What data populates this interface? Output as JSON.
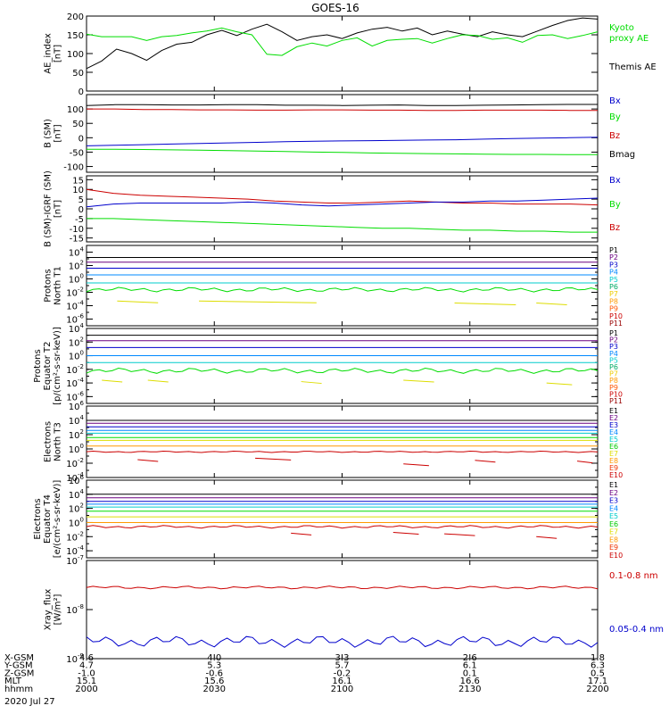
{
  "title": "GOES-16",
  "date": "2020 Jul 27",
  "chart_data": [
    {
      "type": "line",
      "ylabel": [
        "AE_index",
        "[nT]"
      ],
      "ylim": [
        0,
        200
      ],
      "yticks": [
        "0",
        "50",
        "100",
        "150",
        "200"
      ],
      "legend": [
        {
          "text": "Kyoto",
          "color": "#00dd00"
        },
        {
          "text": "proxy AE",
          "color": "#00dd00"
        },
        {
          "text": "Themis AE",
          "color": "#000000"
        }
      ],
      "series": [
        {
          "name": "Themis AE",
          "color": "#000000",
          "values": [
            60,
            80,
            112,
            100,
            82,
            108,
            125,
            130,
            150,
            162,
            148,
            165,
            178,
            158,
            135,
            145,
            150,
            140,
            155,
            165,
            170,
            160,
            168,
            150,
            160,
            152,
            145,
            158,
            150,
            145,
            160,
            175,
            188,
            195,
            192
          ]
        },
        {
          "name": "Kyoto proxy AE",
          "color": "#00dd00",
          "values": [
            152,
            145,
            145,
            145,
            135,
            145,
            148,
            155,
            160,
            168,
            158,
            150,
            98,
            95,
            118,
            128,
            120,
            135,
            142,
            120,
            135,
            138,
            140,
            128,
            140,
            150,
            148,
            138,
            142,
            130,
            148,
            150,
            140,
            148,
            158
          ]
        }
      ]
    },
    {
      "type": "line",
      "ylabel": [
        "B (SM)",
        "[nT]"
      ],
      "ylim": [
        -120,
        150
      ],
      "yticks": [
        "-100",
        "-50",
        "0",
        "50",
        "100"
      ],
      "legend": [
        {
          "text": "Bx",
          "color": "#0000cc"
        },
        {
          "text": "By",
          "color": "#00dd00"
        },
        {
          "text": "Bz",
          "color": "#cc0000"
        },
        {
          "text": "Bmag",
          "color": "#000000"
        }
      ],
      "series": [
        {
          "name": "Bmag",
          "color": "#000000",
          "values": [
            112,
            115,
            115,
            114,
            114,
            115,
            115,
            113,
            113,
            112,
            113,
            114,
            112,
            112,
            113,
            114,
            115,
            116,
            116
          ]
        },
        {
          "name": "Bz",
          "color": "#cc0000",
          "values": [
            100,
            100,
            98,
            98,
            97,
            97,
            96,
            96,
            97,
            97,
            96,
            96,
            95,
            95,
            96,
            96,
            96,
            95,
            95
          ]
        },
        {
          "name": "Bx",
          "color": "#0000cc",
          "values": [
            -28,
            -26,
            -24,
            -22,
            -20,
            -18,
            -16,
            -14,
            -12,
            -11,
            -10,
            -9,
            -8,
            -7,
            -5,
            -3,
            -1,
            0,
            2
          ]
        },
        {
          "name": "By",
          "color": "#00dd00",
          "values": [
            -40,
            -40,
            -41,
            -42,
            -43,
            -45,
            -46,
            -48,
            -50,
            -51,
            -53,
            -54,
            -55,
            -56,
            -57,
            -58,
            -58,
            -59,
            -59
          ]
        }
      ]
    },
    {
      "type": "line",
      "ylabel": [
        "B (SM)-IGRF (SM)",
        "[nT]"
      ],
      "ylim": [
        -17,
        17
      ],
      "yticks": [
        "-15",
        "-10",
        "-5",
        "0",
        "5",
        "10",
        "15"
      ],
      "legend": [
        {
          "text": "Bx",
          "color": "#0000cc"
        },
        {
          "text": "By",
          "color": "#00dd00"
        },
        {
          "text": "Bz",
          "color": "#cc0000"
        }
      ],
      "series": [
        {
          "name": "Bz",
          "color": "#cc0000",
          "values": [
            10,
            8,
            7,
            6.5,
            6,
            5.5,
            5,
            4,
            3.5,
            3,
            3,
            3.5,
            4,
            3.5,
            3,
            3,
            2.5,
            2.5,
            2.5,
            2
          ]
        },
        {
          "name": "Bx",
          "color": "#0000cc",
          "values": [
            1,
            2.5,
            3,
            3,
            3,
            3,
            3.5,
            3,
            2,
            1.5,
            2,
            2.5,
            3,
            3.5,
            3.5,
            4,
            4,
            4.5,
            5,
            5.5
          ]
        },
        {
          "name": "By",
          "color": "#00dd00",
          "values": [
            -5,
            -5,
            -5.5,
            -6,
            -6.5,
            -7,
            -7.5,
            -8,
            -8.5,
            -9,
            -9.5,
            -10,
            -10,
            -10.5,
            -11,
            -11,
            -11.5,
            -11.5,
            -12,
            -12
          ]
        }
      ]
    },
    {
      "type": "line",
      "log": true,
      "ylabel": [
        "Protons",
        "North T1"
      ],
      "ylim_exp": [
        -7,
        5
      ],
      "ytick_exps": [
        -6,
        -4,
        -2,
        0,
        2,
        4
      ],
      "legend": [
        {
          "text": "P1",
          "color": "#000000"
        },
        {
          "text": "P2",
          "color": "#6a0080"
        },
        {
          "text": "P3",
          "color": "#0000cc"
        },
        {
          "text": "P4",
          "color": "#0088ff"
        },
        {
          "text": "P5",
          "color": "#00cccc"
        },
        {
          "text": "P6",
          "color": "#00aa66"
        },
        {
          "text": "P7",
          "color": "#eecc00"
        },
        {
          "text": "P8",
          "color": "#ff9900"
        },
        {
          "text": "P9",
          "color": "#ff5500"
        },
        {
          "text": "P10",
          "color": "#cc0000"
        },
        {
          "text": "P11",
          "color": "#990000"
        }
      ],
      "series": [
        {
          "name": "P1",
          "color": "#000000",
          "level": 3.2
        },
        {
          "name": "P2",
          "color": "#6a0080",
          "level": 2.5
        },
        {
          "name": "P3",
          "color": "#0000cc",
          "level": 1.6
        },
        {
          "name": "P4",
          "color": "#0088ff",
          "level": 0.6
        },
        {
          "name": "P5",
          "color": "#00cccc",
          "level": -0.6
        },
        {
          "name": "P6",
          "color": "#00dd00",
          "level": -1.6,
          "wiggle": 0.35
        },
        {
          "name": "P7",
          "color": "#dddd00",
          "segments": [
            [
              0.06,
              0.14,
              -3.3
            ],
            [
              0.22,
              0.45,
              -3.3
            ],
            [
              0.72,
              0.84,
              -3.6
            ],
            [
              0.88,
              0.94,
              -3.6
            ]
          ]
        }
      ]
    },
    {
      "type": "line",
      "log": true,
      "ylabel": [
        "Protons",
        "Equator T2",
        "[p/(cm²-s-sr-keV)]"
      ],
      "ylim_exp": [
        -7,
        4
      ],
      "ytick_exps": [
        -6,
        -4,
        -2,
        0,
        2,
        4
      ],
      "legend": [
        {
          "text": "P1",
          "color": "#000000"
        },
        {
          "text": "P2",
          "color": "#6a0080"
        },
        {
          "text": "P3",
          "color": "#0000cc"
        },
        {
          "text": "P4",
          "color": "#0088ff"
        },
        {
          "text": "P5",
          "color": "#00cccc"
        },
        {
          "text": "P6",
          "color": "#00aa66"
        },
        {
          "text": "P7",
          "color": "#eecc00"
        },
        {
          "text": "P8",
          "color": "#ff9900"
        },
        {
          "text": "P9",
          "color": "#ff5500"
        },
        {
          "text": "P10",
          "color": "#cc0000"
        },
        {
          "text": "P11",
          "color": "#990000"
        }
      ],
      "series": [
        {
          "name": "P1",
          "color": "#000000",
          "level": 3.0
        },
        {
          "name": "P2",
          "color": "#6a0080",
          "level": 2.2
        },
        {
          "name": "P3",
          "color": "#0000cc",
          "level": 1.2
        },
        {
          "name": "P4",
          "color": "#0088ff",
          "level": 0.0
        },
        {
          "name": "P5",
          "color": "#00cccc",
          "level": -1.0
        },
        {
          "name": "P6",
          "color": "#00dd00",
          "level": -2.2,
          "wiggle": 0.4
        },
        {
          "name": "P7",
          "color": "#dddd00",
          "segments": [
            [
              0.03,
              0.07,
              -3.6
            ],
            [
              0.12,
              0.16,
              -3.6
            ],
            [
              0.42,
              0.46,
              -3.8
            ],
            [
              0.62,
              0.68,
              -3.6
            ],
            [
              0.9,
              0.95,
              -4.0
            ]
          ]
        }
      ]
    },
    {
      "type": "line",
      "log": true,
      "ylabel": [
        "Electrons",
        "North T3"
      ],
      "ylim_exp": [
        -4,
        6
      ],
      "ytick_exps": [
        -4,
        -2,
        0,
        2,
        4,
        6
      ],
      "legend": [
        {
          "text": "E1",
          "color": "#000000"
        },
        {
          "text": "E2",
          "color": "#6a0080"
        },
        {
          "text": "E3",
          "color": "#0000cc"
        },
        {
          "text": "E4",
          "color": "#0088ff"
        },
        {
          "text": "E5",
          "color": "#00cccc"
        },
        {
          "text": "E6",
          "color": "#00cc00"
        },
        {
          "text": "E7",
          "color": "#dddd00"
        },
        {
          "text": "E8",
          "color": "#ff9900"
        },
        {
          "text": "E9",
          "color": "#ee3300"
        },
        {
          "text": "E10",
          "color": "#cc0000"
        }
      ],
      "series": [
        {
          "name": "E1",
          "color": "#000000",
          "level": 4.0
        },
        {
          "name": "E2",
          "color": "#6a0080",
          "level": 3.6
        },
        {
          "name": "E3",
          "color": "#0000cc",
          "level": 3.1
        },
        {
          "name": "E4",
          "color": "#0088ff",
          "level": 2.6
        },
        {
          "name": "E5",
          "color": "#00cccc",
          "level": 2.2
        },
        {
          "name": "E6",
          "color": "#00dd00",
          "level": 1.6
        },
        {
          "name": "E7",
          "color": "#dddd00",
          "level": 1.2
        },
        {
          "name": "E8",
          "color": "#ff9900",
          "level": 0.4
        },
        {
          "name": "E9",
          "color": "#cc0000",
          "level": -0.4,
          "wiggle": 0.1
        },
        {
          "name": "E10",
          "color": "#cc0000",
          "segments": [
            [
              0.1,
              0.14,
              -1.5
            ],
            [
              0.33,
              0.4,
              -1.3
            ],
            [
              0.62,
              0.67,
              -2.1
            ],
            [
              0.76,
              0.8,
              -1.6
            ],
            [
              0.96,
              0.99,
              -1.7
            ]
          ]
        }
      ]
    },
    {
      "type": "line",
      "log": true,
      "ylabel": [
        "Electrons",
        "Equator T4",
        "[e/(cm²-s-sr-keV)]"
      ],
      "ylim_exp": [
        -5,
        6
      ],
      "ytick_exps": [
        -4,
        -2,
        0,
        2,
        4,
        6
      ],
      "legend": [
        {
          "text": "E1",
          "color": "#000000"
        },
        {
          "text": "E2",
          "color": "#6a0080"
        },
        {
          "text": "E3",
          "color": "#0000cc"
        },
        {
          "text": "E4",
          "color": "#0088ff"
        },
        {
          "text": "E5",
          "color": "#00cccc"
        },
        {
          "text": "E6",
          "color": "#00cc00"
        },
        {
          "text": "E7",
          "color": "#dddd00"
        },
        {
          "text": "E8",
          "color": "#ff9900"
        },
        {
          "text": "E9",
          "color": "#ee3300"
        },
        {
          "text": "E10",
          "color": "#cc0000"
        }
      ],
      "series": [
        {
          "name": "E1",
          "color": "#000000",
          "level": 4.0
        },
        {
          "name": "E2",
          "color": "#6a0080",
          "level": 3.5
        },
        {
          "name": "E3",
          "color": "#0000cc",
          "level": 3.0
        },
        {
          "name": "E4",
          "color": "#0088ff",
          "level": 2.6
        },
        {
          "name": "E5",
          "color": "#00cccc",
          "level": 2.2
        },
        {
          "name": "E6",
          "color": "#00dd00",
          "level": 1.6
        },
        {
          "name": "E7",
          "color": "#dddd00",
          "level": 0.8
        },
        {
          "name": "E8",
          "color": "#ff9900",
          "level": 0.0
        },
        {
          "name": "E9",
          "color": "#cc0000",
          "level": -0.6,
          "wiggle": 0.2
        },
        {
          "name": "E10",
          "color": "#cc0000",
          "segments": [
            [
              0.4,
              0.44,
              -1.5
            ],
            [
              0.6,
              0.65,
              -1.4
            ],
            [
              0.7,
              0.76,
              -1.6
            ],
            [
              0.88,
              0.92,
              -2.0
            ]
          ]
        }
      ]
    },
    {
      "type": "line",
      "log": true,
      "ylabel": [
        "Xray_flux",
        "[W/m²]"
      ],
      "ylim_exp": [
        -9,
        -7
      ],
      "ytick_exps": [
        -9,
        -8,
        -7
      ],
      "legend": [
        {
          "text": "0.1-0.8 nm",
          "color": "#cc0000"
        },
        {
          "text": "0.05-0.4 nm",
          "color": "#0000cc"
        }
      ],
      "series": [
        {
          "name": "0.1-0.8 nm",
          "color": "#cc0000",
          "level": -7.55,
          "wiggle": 0.03
        },
        {
          "name": "0.05-0.4 nm",
          "color": "#0000cc",
          "level": -8.65,
          "wiggle": 0.12
        }
      ]
    }
  ],
  "x_axis": {
    "row_labels": [
      "X-GSM",
      "Y-GSM",
      "Z-GSM",
      "MLT",
      "hhmm"
    ],
    "columns": [
      {
        "values": [
          "4.6",
          "4.7",
          "-1.0",
          "15.1",
          "2000"
        ]
      },
      {
        "values": [
          "4.0",
          "5.3",
          "-0.6",
          "15.6",
          "2030"
        ]
      },
      {
        "values": [
          "3.3",
          "5.7",
          "-0.2",
          "16.1",
          "2100"
        ]
      },
      {
        "values": [
          "2.6",
          "6.1",
          "0.1",
          "16.6",
          "2130"
        ]
      },
      {
        "values": [
          "1.8",
          "6.3",
          "0.5",
          "17.1",
          "2200"
        ]
      }
    ]
  }
}
